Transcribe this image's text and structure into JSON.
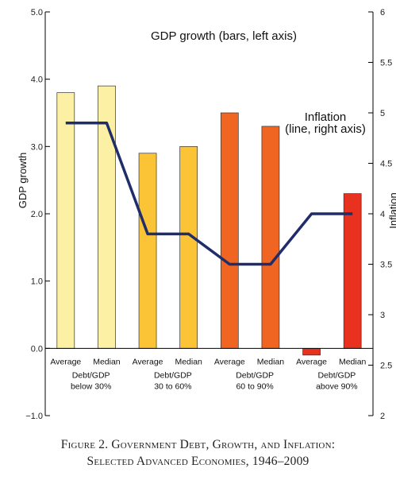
{
  "chart_data": {
    "type": "bar+line",
    "title": "",
    "annotations": {
      "bars_note": "GDP growth (bars, left axis)",
      "line_note_1": "Inflation",
      "line_note_2": "(line, right axis)"
    },
    "ylabel_left": "GDP growth",
    "ylabel_right": "Inflation",
    "left_axis": {
      "min": -1.0,
      "max": 5.0,
      "ticks": [
        "−1.0",
        "0.0",
        "1.0",
        "2.0",
        "3.0",
        "4.0",
        "5.0"
      ],
      "tick_values": [
        -1,
        0,
        1,
        2,
        3,
        4,
        5
      ]
    },
    "right_axis": {
      "min": 2,
      "max": 6,
      "ticks": [
        "2",
        "2.5",
        "3",
        "3.5",
        "4",
        "4.5",
        "5",
        "5.5",
        "6"
      ],
      "tick_values": [
        2,
        2.5,
        3,
        3.5,
        4,
        4.5,
        5,
        5.5,
        6
      ]
    },
    "groups": [
      {
        "line1": "Debt/GDP",
        "line2": "below 30%",
        "color": "#fbf0a3"
      },
      {
        "line1": "Debt/GDP",
        "line2": "30 to 60%",
        "color": "#fbc336"
      },
      {
        "line1": "Debt/GDP",
        "line2": "60 to 90%",
        "color": "#f16522"
      },
      {
        "line1": "Debt/GDP",
        "line2": "above 90%",
        "color": "#e8311e"
      }
    ],
    "categories": [
      "Average",
      "Median",
      "Average",
      "Median",
      "Average",
      "Median",
      "Average",
      "Median"
    ],
    "series": [
      {
        "name": "GDP growth",
        "axis": "left",
        "values": [
          3.8,
          3.9,
          2.9,
          3.0,
          3.5,
          3.3,
          -0.1,
          2.3
        ]
      },
      {
        "name": "Inflation",
        "axis": "right",
        "values": [
          4.9,
          4.9,
          3.8,
          3.8,
          3.5,
          3.5,
          4.0,
          4.0
        ],
        "color": "#1f2d6b"
      }
    ],
    "grid": false
  },
  "caption": {
    "line1": "Figure 2. Government Debt, Growth, and Inflation:",
    "line2": "Selected Advanced Economies, 1946–2009"
  }
}
